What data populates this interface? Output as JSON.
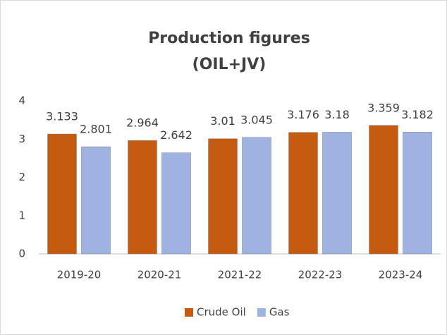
{
  "chart_data": {
    "type": "bar",
    "title": "Production figures",
    "subtitle": "(OIL+JV)",
    "categories": [
      "2019-20",
      "2020-21",
      "2021-22",
      "2022-23",
      "2023-24"
    ],
    "series": [
      {
        "name": "Crude Oil",
        "color": "#c55a11",
        "values": [
          3.133,
          2.964,
          3.01,
          3.176,
          3.359
        ]
      },
      {
        "name": "Gas",
        "color": "#9eb3e2",
        "values": [
          2.801,
          2.642,
          3.045,
          3.18,
          3.182
        ]
      }
    ],
    "ylim": [
      0,
      4
    ],
    "yticks": [
      0,
      1,
      2,
      3,
      4
    ],
    "grid": false,
    "legend": "bottom"
  }
}
